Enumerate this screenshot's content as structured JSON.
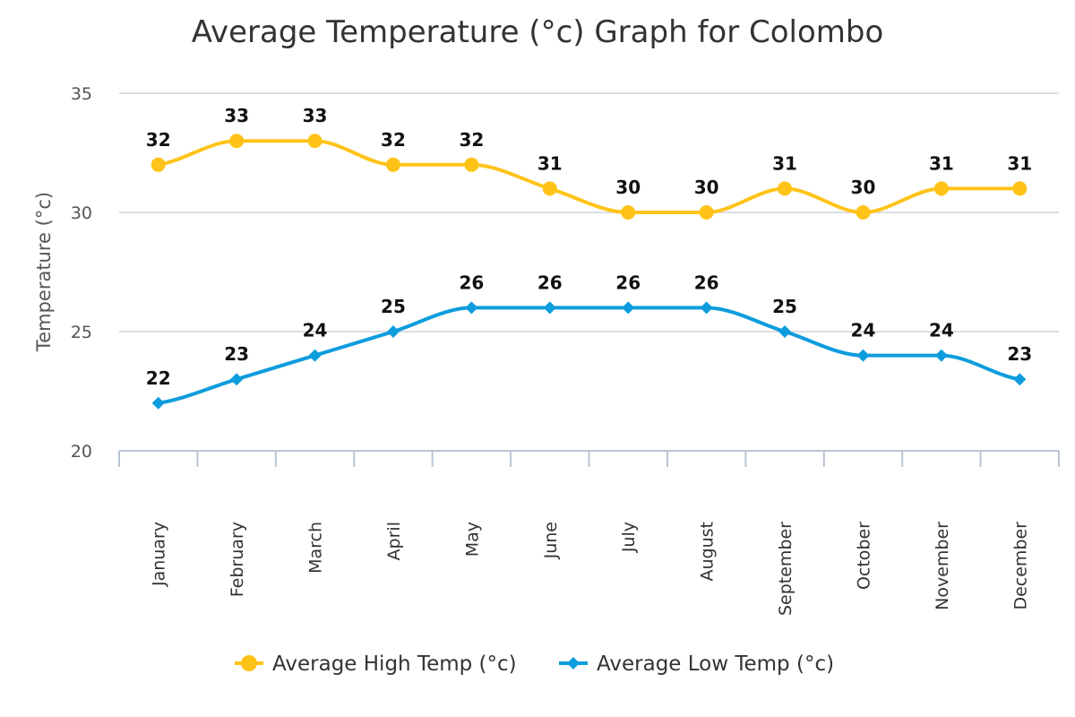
{
  "chart_data": {
    "type": "line",
    "title": "Average Temperature (°c) Graph for Colombo",
    "xlabel": "",
    "ylabel": "Temperature (°c)",
    "ylim": [
      20,
      35
    ],
    "yticks": [
      20,
      25,
      30,
      35
    ],
    "grid": true,
    "legend_position": "bottom-center",
    "categories": [
      "January",
      "February",
      "March",
      "April",
      "May",
      "June",
      "July",
      "August",
      "September",
      "October",
      "November",
      "December"
    ],
    "series": [
      {
        "name": "Average High Temp (°c)",
        "color": "#FFC318",
        "marker": "circle",
        "values": [
          32,
          33,
          33,
          32,
          32,
          31,
          30,
          30,
          31,
          30,
          31,
          31
        ]
      },
      {
        "name": "Average Low Temp (°c)",
        "color": "#0D9CDD",
        "marker": "diamond",
        "values": [
          22,
          23,
          24,
          25,
          26,
          26,
          26,
          26,
          25,
          24,
          24,
          23
        ]
      }
    ]
  }
}
